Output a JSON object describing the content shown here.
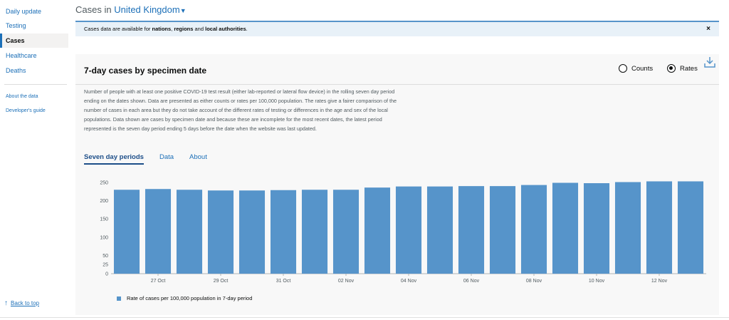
{
  "sidebar": {
    "items": [
      {
        "label": "Daily update",
        "active": false
      },
      {
        "label": "Testing",
        "active": false
      },
      {
        "label": "Cases",
        "active": true
      },
      {
        "label": "Healthcare",
        "active": false
      },
      {
        "label": "Deaths",
        "active": false
      }
    ],
    "links": [
      "About the data",
      "Developer's guide"
    ],
    "back_to_top": "Back to top"
  },
  "header": {
    "prefix": "Cases in",
    "location": "United Kingdom"
  },
  "banner": {
    "text_1": "Cases data are available for ",
    "b1": "nations",
    "text_2": ", ",
    "b2": "regions",
    "text_3": " and ",
    "b3": "local authorities",
    "text_4": ".",
    "close": "×"
  },
  "card": {
    "title": "7-day cases by specimen date",
    "radio_counts": "Counts",
    "radio_rates": "Rates",
    "selected": "Rates",
    "description": "Number of people with at least one positive COVID-19 test result (either lab-reported or lateral flow device) in the rolling seven day period ending on the dates shown. Data are presented as either counts or rates per 100,000 population. The rates give a fairer comparison of the number of cases in each area but they do not take account of the different rates of testing or differences in the age and sex of the local populations. Data shown are cases by specimen date and because these are incomplete for the most recent dates, the latest period represented is the seven day period ending 5 days before the date when the website was last updated.",
    "tabs": [
      "Seven day periods",
      "Data",
      "About"
    ],
    "active_tab": "Seven day periods"
  },
  "chart_data": {
    "type": "bar",
    "yticks": [
      0,
      25,
      50,
      100,
      150,
      200,
      250
    ],
    "ylim": [
      0,
      250
    ],
    "xtick_labels": [
      "27 Oct",
      "29 Oct",
      "31 Oct",
      "02 Nov",
      "04 Nov",
      "06 Nov",
      "08 Nov",
      "10 Nov",
      "12 Nov"
    ],
    "xtick_indices": [
      1.5,
      3.5,
      5.5,
      7.5,
      9.5,
      11.5,
      13.5,
      15.5,
      17.5
    ],
    "values": [
      230,
      232,
      230,
      228,
      228,
      229,
      230,
      230,
      236,
      239,
      239,
      240,
      240,
      243,
      249,
      248,
      251,
      253,
      253
    ],
    "legend": "Rate of cases per 100,000 population in 7-day period",
    "color": "#5694ca"
  }
}
